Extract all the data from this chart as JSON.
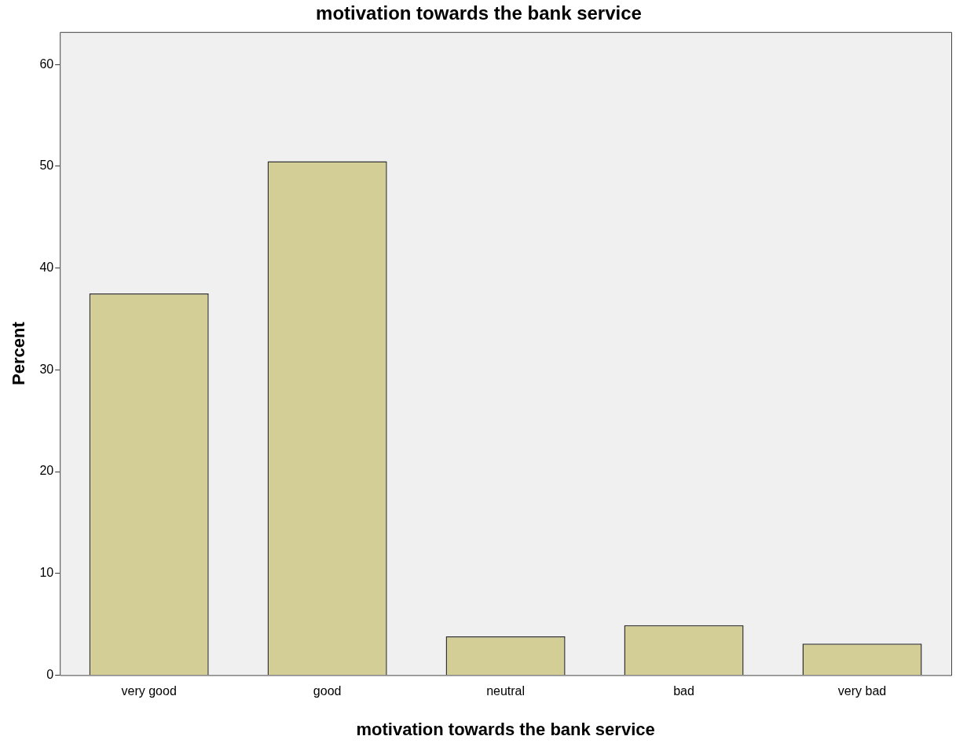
{
  "chart_data": {
    "type": "bar",
    "title": "motivation towards the bank service",
    "xlabel": "motivation towards the bank service",
    "ylabel": "Percent",
    "categories": [
      "very good",
      "good",
      "neutral",
      "bad",
      "very bad"
    ],
    "values": [
      37.5,
      50.5,
      3.8,
      4.9,
      3.1
    ],
    "color": "#d3cd96",
    "ylim": [
      0,
      63.2
    ],
    "yticks": [
      0,
      10,
      20,
      30,
      40,
      50,
      60
    ],
    "grid": false,
    "legend": false
  }
}
